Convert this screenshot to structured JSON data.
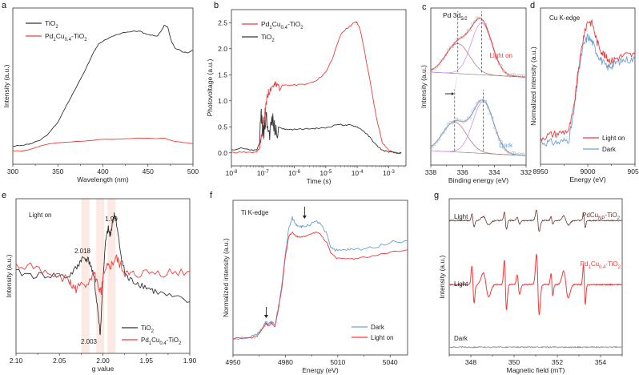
{
  "figure": {
    "panel_labels": [
      "a",
      "b",
      "c",
      "d",
      "e",
      "f",
      "g"
    ]
  },
  "colors": {
    "black": "#333333",
    "red": "#f03c3c",
    "blue": "#6aa1d8",
    "purple": "#c58ae8",
    "brown": "#b06a6a",
    "grey": "#8c8c8c",
    "darkred": "#6b3535",
    "band": "#fbe3dc"
  },
  "chart_data": [
    {
      "id": "a",
      "type": "line",
      "title": "",
      "xlabel": "Wavelength (nm)",
      "ylabel": "Intensity (a.u.)",
      "xlim": [
        300,
        500
      ],
      "ylim": [
        0,
        1
      ],
      "xticks": [
        300,
        350,
        400,
        450,
        500
      ],
      "legend": {
        "placement": "top-left",
        "entries": [
          "TiO2",
          "Pd1Cu0.4-TiO2"
        ]
      },
      "series": [
        {
          "name": "TiO2",
          "color": "black",
          "x": [
            300,
            310,
            320,
            330,
            340,
            350,
            360,
            370,
            380,
            390,
            395,
            400,
            410,
            420,
            430,
            440,
            445,
            450,
            455,
            460,
            465,
            468,
            472,
            476,
            480,
            485,
            490,
            495,
            500
          ],
          "y": [
            0.04,
            0.045,
            0.06,
            0.09,
            0.15,
            0.25,
            0.4,
            0.55,
            0.7,
            0.87,
            0.93,
            0.96,
            1.0,
            1.03,
            1.04,
            1.05,
            1.03,
            1.02,
            1.01,
            1.0,
            1.05,
            1.1,
            1.08,
            0.96,
            0.9,
            0.88,
            0.86,
            0.86,
            0.88
          ]
        },
        {
          "name": "Pd1Cu0.4-TiO2",
          "color": "red",
          "x": [
            300,
            310,
            320,
            330,
            340,
            350,
            360,
            380,
            400,
            420,
            440,
            460,
            468,
            475,
            480,
            490,
            500
          ],
          "y": [
            0.0,
            -0.005,
            0.01,
            0.04,
            0.06,
            0.07,
            0.075,
            0.085,
            0.1,
            0.1,
            0.11,
            0.105,
            0.11,
            0.09,
            0.08,
            0.07,
            0.06
          ]
        }
      ]
    },
    {
      "id": "b",
      "type": "line",
      "xlabel": "Time (s)",
      "ylabel": "Photovoltage (a.u.)",
      "xscale": "log",
      "xlim": [
        -8,
        -2.5
      ],
      "ylim": [
        -0.25,
        2.75
      ],
      "xticks": [
        "10-8",
        "10-7",
        "10-6",
        "10-5",
        "10-4",
        "10-3"
      ],
      "yticks": [
        "0.0",
        "0.5",
        "1.0",
        "1.5",
        "2.0",
        "2.5"
      ],
      "legend": {
        "placement": "top-left",
        "entries": [
          "Pd1Cu0.4-TiO2",
          "TiO2"
        ]
      },
      "series": [
        {
          "name": "Pd1Cu0.4-TiO2",
          "color": "red",
          "log10x": [
            -8,
            -7.7,
            -7.4,
            -7.2,
            -7.1,
            -7.0,
            -6.95,
            -6.9,
            -6.85,
            -6.8,
            -6.7,
            -6.6,
            -6.5,
            -6.3,
            -6,
            -5.6,
            -5.3,
            -5,
            -4.8,
            -4.5,
            -4.2,
            -4.05,
            -4,
            -3.9,
            -3.8,
            -3.6,
            -3.4,
            -3.2,
            -3,
            -2.8,
            -2.6
          ],
          "y": [
            0.0,
            0.02,
            0.0,
            0.02,
            0.1,
            0.5,
            0.7,
            0.9,
            1.1,
            1.2,
            1.28,
            1.3,
            1.28,
            1.3,
            1.3,
            1.32,
            1.38,
            1.55,
            1.8,
            2.3,
            2.45,
            2.52,
            2.5,
            2.35,
            2.05,
            1.4,
            0.7,
            0.2,
            0.05,
            0.0,
            0.0
          ]
        },
        {
          "name": "TiO2",
          "color": "black",
          "log10x": [
            -8,
            -7.7,
            -7.4,
            -7.2,
            -7.1,
            -7.05,
            -7.0,
            -6.9,
            -6.8,
            -6.7,
            -6.6,
            -6.5,
            -6.3,
            -6,
            -5.6,
            -5.3,
            -5,
            -4.6,
            -4.4,
            -4.2,
            -4,
            -3.8,
            -3.6,
            -3.4,
            -3.2,
            -3,
            -2.8,
            -2.6
          ],
          "y": [
            0.05,
            0.1,
            0.05,
            0.05,
            0.2,
            0.8,
            0.3,
            0.7,
            0.35,
            0.65,
            0.4,
            0.5,
            0.45,
            0.45,
            0.46,
            0.47,
            0.48,
            0.55,
            0.53,
            0.53,
            0.5,
            0.42,
            0.3,
            0.15,
            0.05,
            0.02,
            0.0,
            0.0
          ]
        }
      ]
    },
    {
      "id": "c",
      "type": "line",
      "xlabel": "Binding energy (eV)",
      "ylabel": "Intensity (a.u.)",
      "xlim": [
        338,
        332
      ],
      "ylim": [
        0,
        1
      ],
      "xticks": [
        338,
        336,
        334,
        332
      ],
      "annotations": [
        "Pd 3d5/2",
        "Light on",
        "Dark"
      ],
      "peaks": {
        "light_on": [
          336.3,
          334.8
        ],
        "dark": [
          336.5,
          334.7
        ]
      },
      "series": [
        {
          "name": "Light on fit",
          "color": "red",
          "center": 334.8,
          "side": 336.3,
          "panel": "top"
        },
        {
          "name": "Dark fit",
          "color": "blue",
          "center": 334.7,
          "side": 336.5,
          "panel": "bottom"
        }
      ]
    },
    {
      "id": "d",
      "type": "line",
      "xlabel": "Energy (eV)",
      "ylabel": "Normalized intensity (a.u.)",
      "xlim": [
        8950,
        9050
      ],
      "ylim": [
        0,
        1
      ],
      "xticks": [
        8950,
        9000,
        9050
      ],
      "annotations": [
        "Cu K-edge"
      ],
      "legend": {
        "placement": "bottom-right",
        "entries": [
          "Light on",
          "Dark"
        ]
      },
      "series": [
        {
          "name": "Light on",
          "color": "red",
          "x": [
            8950,
            8960,
            8970,
            8980,
            8985,
            8990,
            8995,
            9000,
            9005,
            9010,
            9015,
            9020,
            9025,
            9030,
            9040,
            9050
          ],
          "y": [
            0.17,
            0.19,
            0.2,
            0.22,
            0.35,
            0.6,
            0.8,
            0.92,
            0.9,
            0.78,
            0.72,
            0.68,
            0.66,
            0.68,
            0.7,
            0.7
          ]
        },
        {
          "name": "Dark",
          "color": "blue",
          "x": [
            8950,
            8960,
            8970,
            8980,
            8985,
            8990,
            8995,
            9000,
            9005,
            9010,
            9015,
            9020,
            9025,
            9030,
            9040,
            9050
          ],
          "y": [
            0.14,
            0.14,
            0.14,
            0.16,
            0.32,
            0.58,
            0.75,
            0.82,
            0.78,
            0.71,
            0.66,
            0.62,
            0.63,
            0.65,
            0.67,
            0.67
          ]
        }
      ]
    },
    {
      "id": "e",
      "type": "line",
      "xlabel": "g value",
      "ylabel": "Intensity (a.u.)",
      "xlim": [
        2.1,
        1.9
      ],
      "ylim": [
        0,
        1
      ],
      "xticks": [
        "2.10",
        "2.05",
        "2.00",
        "1.95",
        "1.90"
      ],
      "annotations": [
        "Light on",
        "2.018",
        "2.003",
        "1.99"
      ],
      "highlight_bands": [
        2.02,
        2.003,
        1.99
      ],
      "legend": {
        "placement": "bottom-right",
        "entries": [
          "TiO2",
          "Pd1Cu0.4-TiO2"
        ]
      },
      "series": [
        {
          "name": "TiO2",
          "color": "black",
          "x": [
            2.1,
            2.08,
            2.06,
            2.04,
            2.03,
            2.025,
            2.02,
            2.015,
            2.01,
            2.006,
            2.003,
            2.0,
            1.997,
            1.994,
            1.992,
            1.99,
            1.987,
            1.985,
            1.98,
            1.975,
            1.97,
            1.96,
            1.95,
            1.94,
            1.92,
            1.9
          ],
          "y": [
            0.55,
            0.53,
            0.53,
            0.52,
            0.58,
            0.64,
            0.65,
            0.62,
            0.5,
            0.3,
            0.12,
            0.5,
            0.75,
            0.85,
            0.8,
            0.85,
            0.95,
            0.9,
            0.7,
            0.55,
            0.5,
            0.48,
            0.45,
            0.42,
            0.38,
            0.35
          ]
        },
        {
          "name": "Pd1Cu0.4-TiO2",
          "color": "red",
          "x": [
            2.1,
            2.08,
            2.06,
            2.04,
            2.035,
            2.03,
            2.02,
            2.01,
            2.005,
            2.002,
            2.0,
            1.995,
            1.99,
            1.985,
            1.98,
            1.975,
            1.97,
            1.96,
            1.94,
            1.92,
            1.9
          ],
          "y": [
            0.58,
            0.6,
            0.53,
            0.5,
            0.45,
            0.44,
            0.48,
            0.54,
            0.45,
            0.4,
            0.5,
            0.58,
            0.6,
            0.65,
            0.6,
            0.55,
            0.53,
            0.54,
            0.55,
            0.55,
            0.56
          ]
        }
      ]
    },
    {
      "id": "f",
      "type": "line",
      "xlabel": "Energy (eV)",
      "ylabel": "Normalized intensity (a.u.)",
      "xlim": [
        4950,
        5050
      ],
      "ylim": [
        0,
        1
      ],
      "xticks": [
        4950,
        4980,
        5010,
        5040
      ],
      "annotations": [
        "Ti K-edge"
      ],
      "arrows_at": [
        4969,
        4990
      ],
      "legend": {
        "placement": "bottom-right",
        "entries": [
          "Dark",
          "Light on"
        ]
      },
      "series": [
        {
          "name": "Dark",
          "color": "blue",
          "x": [
            4950,
            4960,
            4964,
            4966,
            4968,
            4969,
            4970,
            4972,
            4974,
            4976,
            4978,
            4980,
            4982,
            4984,
            4986,
            4988,
            4990,
            4994,
            4998,
            5000,
            5004,
            5006,
            5010,
            5015,
            5020,
            5030,
            5040,
            5050
          ],
          "y": [
            0.03,
            0.04,
            0.06,
            0.1,
            0.14,
            0.16,
            0.14,
            0.16,
            0.13,
            0.28,
            0.45,
            0.7,
            0.9,
            0.98,
            0.93,
            0.92,
            0.91,
            0.93,
            0.95,
            0.93,
            0.85,
            0.75,
            0.72,
            0.73,
            0.73,
            0.75,
            0.79,
            0.8
          ]
        },
        {
          "name": "Light on",
          "color": "red",
          "x": [
            4950,
            4960,
            4964,
            4966,
            4968,
            4969,
            4970,
            4972,
            4974,
            4976,
            4978,
            4980,
            4982,
            4984,
            4986,
            4988,
            4990,
            4994,
            4998,
            5000,
            5004,
            5006,
            5010,
            5015,
            5020,
            5030,
            5040,
            5050
          ],
          "y": [
            0.03,
            0.035,
            0.05,
            0.09,
            0.13,
            0.15,
            0.13,
            0.15,
            0.12,
            0.26,
            0.43,
            0.68,
            0.84,
            0.87,
            0.84,
            0.83,
            0.83,
            0.85,
            0.87,
            0.85,
            0.78,
            0.7,
            0.66,
            0.66,
            0.66,
            0.68,
            0.71,
            0.73
          ]
        }
      ]
    },
    {
      "id": "g",
      "type": "line",
      "xlabel": "Magnetic field (mT)",
      "ylabel": "Intensity (a.u.)",
      "xlim": [
        347,
        355
      ],
      "ylim": [
        0,
        1
      ],
      "xticks": [
        348,
        350,
        352,
        354
      ],
      "annotations": [
        "Light",
        "Light",
        "Dark",
        "PdCuNP-TiO2",
        "Pd1Cu0.4-TiO2"
      ],
      "series": [
        {
          "name": "PdCuNP-TiO2 (Light)",
          "color": "darkred",
          "baseline": 0.86,
          "scale": 0.35
        },
        {
          "name": "Pd1Cu0.4-TiO2 (Light)",
          "color": "red",
          "baseline": 0.45,
          "scale": 1.0
        },
        {
          "name": "Dark",
          "color": "grey",
          "baseline": 0.05,
          "scale": 0.0
        }
      ],
      "lines_mT": [
        348.1,
        348.7,
        349.6,
        350.2,
        351.1,
        351.75,
        352.4,
        353.25
      ]
    }
  ],
  "labels": {
    "a": {
      "xlabel": "Wavelength (nm)",
      "ylabel": "Intensity (a.u.)",
      "leg1": "TiO",
      "leg2a": "Pd",
      "leg2b": "Cu",
      "leg2c": "-TiO",
      "sub1": "1",
      "sub04": "0.4",
      "sub2": "2"
    },
    "b": {
      "xlabel": "Time (s)",
      "ylabel": "Photovoltage (a.u.)"
    },
    "c": {
      "xlabel": "Binding energy (eV)",
      "ylabel": "Intensity (a.u.)",
      "title": "Pd 3d",
      "title_sub": "5/2",
      "light": "Light on",
      "dark": "Dark"
    },
    "d": {
      "xlabel": "Energy (eV)",
      "ylabel": "Normalized intensity (a.u.)",
      "title": "Cu K-edge",
      "leg1": "Light on",
      "leg2": "Dark"
    },
    "e": {
      "xlabel": "g value",
      "ylabel": "Intensity (a.u.)",
      "title": "Light on",
      "a1": "2.018",
      "a2": "2.003",
      "a3": "1.99"
    },
    "f": {
      "xlabel": "Energy (eV)",
      "ylabel": "Normalized intensity (a.u.)",
      "title": "Ti K-edge",
      "leg1": "Dark",
      "leg2": "Light on"
    },
    "g": {
      "xlabel": "Magnetic field (mT)",
      "ylabel": "Intensity (a.u.)",
      "light1": "Light",
      "light2": "Light",
      "dark": "Dark",
      "np": "PdCu",
      "np_sub": "NP",
      "np_tail": "-TiO"
    }
  }
}
